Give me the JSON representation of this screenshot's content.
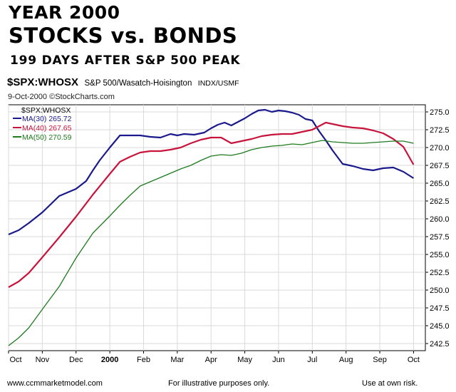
{
  "header": {
    "title_line1": "YEAR 2000",
    "title_line2": "STOCKS vs. BONDS",
    "title_line3": "199 DAYS AFTER S&P 500 PEAK"
  },
  "symbol_line": {
    "symbol": "$SPX:WHOSX",
    "description": "S&P 500/Wasatch-Hoisington",
    "exchange": "INDX/USMF"
  },
  "date_line": {
    "date": "9-Oct-2000",
    "copyright_icon": "copyright-icon",
    "copyright_glyph": "©",
    "source": "StockCharts.com"
  },
  "footer": {
    "left": "www.ccmmarketmodel.com",
    "center": "For illustrative purposes only.",
    "right": "Use at own risk."
  },
  "chart_data": {
    "type": "line",
    "title": "$SPX:WHOSX",
    "x_tick_labels": [
      "Oct",
      "Nov",
      "Dec",
      "2000",
      "Feb",
      "Mar",
      "Apr",
      "May",
      "Jun",
      "Jul",
      "Aug",
      "Sep",
      "Oct"
    ],
    "x_tick_bold": [
      false,
      false,
      false,
      true,
      false,
      false,
      false,
      false,
      false,
      false,
      false,
      false,
      false
    ],
    "ylim": [
      241.5,
      276.0
    ],
    "y_ticks": [
      242.5,
      245.0,
      247.5,
      250.0,
      252.5,
      255.0,
      257.5,
      260.0,
      262.5,
      265.0,
      267.5,
      270.0,
      272.5,
      275.0
    ],
    "y_tick_labels": [
      "242.5",
      "245.0",
      "247.5",
      "250.0",
      "252.5",
      "255.0",
      "257.5",
      "260.0",
      "262.5",
      "265.0",
      "267.5",
      "270.0",
      "272.5",
      "275.0"
    ],
    "grid": true,
    "legend_title": "$SPX:WHOSX",
    "legend_position": "top-left",
    "series": [
      {
        "name": "MA(30) 265.72",
        "color": "#1a1a8c",
        "x": [
          0,
          0.3,
          0.6,
          1.0,
          1.5,
          2.0,
          2.3,
          2.5,
          2.7,
          3.0,
          3.3,
          3.6,
          3.9,
          4.2,
          4.5,
          4.8,
          5.0,
          5.2,
          5.5,
          5.8,
          6.0,
          6.2,
          6.4,
          6.6,
          6.8,
          7.0,
          7.2,
          7.4,
          7.6,
          7.8,
          8.0,
          8.2,
          8.4,
          8.6,
          8.8,
          9.0,
          9.2,
          9.4,
          9.6,
          9.9,
          10.2,
          10.5,
          10.8,
          11.1,
          11.4,
          11.7,
          12.0
        ],
        "values": [
          257.8,
          258.4,
          259.4,
          260.9,
          263.2,
          264.2,
          265.3,
          266.8,
          268.2,
          270.0,
          271.7,
          271.7,
          271.7,
          271.5,
          271.4,
          271.9,
          271.7,
          271.9,
          271.8,
          272.1,
          272.7,
          273.2,
          273.5,
          273.1,
          273.6,
          274.1,
          274.7,
          275.2,
          275.3,
          275.0,
          275.2,
          275.1,
          274.9,
          274.6,
          274.0,
          273.8,
          272.3,
          271.0,
          269.6,
          267.7,
          267.4,
          267.0,
          266.8,
          267.1,
          267.2,
          266.6,
          265.7
        ]
      },
      {
        "name": "MA(40) 267.65",
        "color": "#c8143c",
        "x": [
          0,
          0.3,
          0.6,
          1.0,
          1.5,
          2.0,
          2.5,
          3.0,
          3.3,
          3.6,
          3.9,
          4.2,
          4.5,
          4.8,
          5.1,
          5.4,
          5.7,
          6.0,
          6.3,
          6.6,
          6.9,
          7.2,
          7.5,
          7.8,
          8.1,
          8.4,
          8.7,
          9.0,
          9.2,
          9.4,
          9.6,
          9.9,
          10.2,
          10.5,
          10.8,
          11.1,
          11.4,
          11.7,
          12.0
        ],
        "values": [
          250.4,
          251.2,
          252.4,
          254.6,
          257.4,
          260.3,
          263.4,
          266.3,
          268.0,
          268.7,
          269.3,
          269.5,
          269.5,
          269.7,
          270.0,
          270.6,
          271.1,
          271.4,
          271.4,
          270.6,
          270.9,
          271.2,
          271.6,
          271.8,
          271.9,
          271.9,
          272.2,
          272.5,
          273.0,
          273.5,
          273.3,
          273.0,
          272.8,
          272.7,
          272.4,
          272.0,
          271.2,
          270.1,
          267.6
        ]
      },
      {
        "name": "MA(50) 270.59",
        "color": "#1e7a1e",
        "x": [
          0,
          0.3,
          0.6,
          1.0,
          1.5,
          2.0,
          2.5,
          3.0,
          3.3,
          3.6,
          3.9,
          4.2,
          4.5,
          4.8,
          5.1,
          5.4,
          5.7,
          6.0,
          6.3,
          6.6,
          6.9,
          7.2,
          7.5,
          7.8,
          8.1,
          8.4,
          8.7,
          9.0,
          9.3,
          9.6,
          9.9,
          10.2,
          10.5,
          10.8,
          11.1,
          11.4,
          11.7,
          12.0
        ],
        "values": [
          242.2,
          243.3,
          244.7,
          247.3,
          250.5,
          254.5,
          258.0,
          260.4,
          261.9,
          263.3,
          264.6,
          265.2,
          265.8,
          266.4,
          267.0,
          267.5,
          268.2,
          268.8,
          269.0,
          268.9,
          269.2,
          269.7,
          270.0,
          270.2,
          270.3,
          270.5,
          270.4,
          270.7,
          271.0,
          270.8,
          270.7,
          270.6,
          270.6,
          270.7,
          270.8,
          270.9,
          270.9,
          270.6
        ]
      }
    ]
  }
}
